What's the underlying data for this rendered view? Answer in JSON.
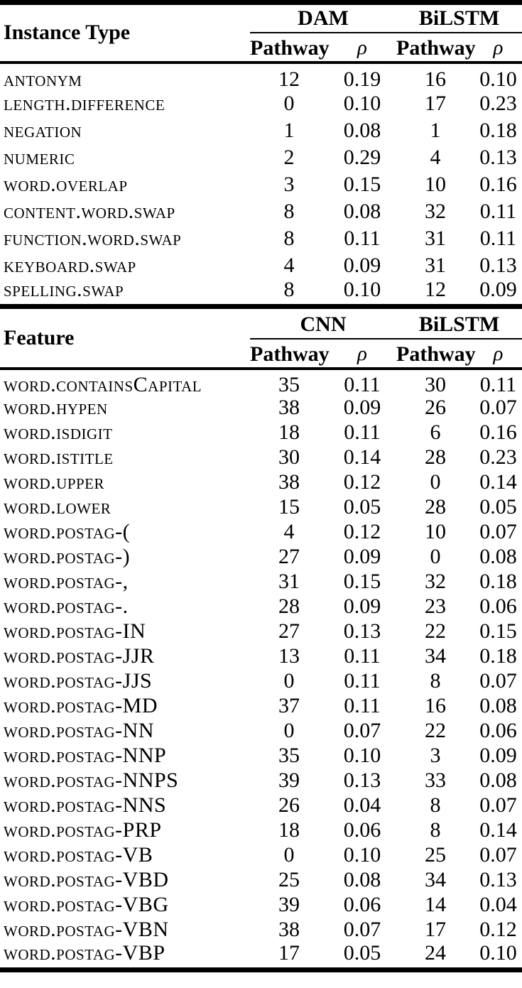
{
  "colors": {
    "background": "#ffffff",
    "text": "#000000",
    "rule": "#000000"
  },
  "tables": [
    {
      "title": "Instance Type",
      "groups": [
        "DAM",
        "BiLSTM"
      ],
      "subheaders": [
        "Pathway",
        "ρ",
        "Pathway",
        "ρ"
      ],
      "rows": [
        {
          "label": "antonym",
          "values": [
            "12",
            "0.19",
            "16",
            "0.10"
          ]
        },
        {
          "label": "length.difference",
          "values": [
            "0",
            "0.10",
            "17",
            "0.23"
          ]
        },
        {
          "label": "negation",
          "values": [
            "1",
            "0.08",
            "1",
            "0.18"
          ]
        },
        {
          "label": "numeric",
          "values": [
            "2",
            "0.29",
            "4",
            "0.13"
          ]
        },
        {
          "label": "word.overlap",
          "values": [
            "3",
            "0.15",
            "10",
            "0.16"
          ]
        },
        {
          "label": "content.word.swap",
          "values": [
            "8",
            "0.08",
            "32",
            "0.11"
          ]
        },
        {
          "label": "function.word.swap",
          "values": [
            "8",
            "0.11",
            "31",
            "0.11"
          ]
        },
        {
          "label": "keyboard.swap",
          "values": [
            "4",
            "0.09",
            "31",
            "0.13"
          ]
        },
        {
          "label": "spelling.swap",
          "values": [
            "8",
            "0.10",
            "12",
            "0.09"
          ]
        }
      ]
    },
    {
      "title": "Feature",
      "groups": [
        "CNN",
        "BiLSTM"
      ],
      "subheaders": [
        "Pathway",
        "ρ",
        "Pathway",
        "ρ"
      ],
      "rows": [
        {
          "label": "word.containsCapital",
          "values": [
            "35",
            "0.11",
            "30",
            "0.11"
          ]
        },
        {
          "label": "word.hypen",
          "values": [
            "38",
            "0.09",
            "26",
            "0.07"
          ]
        },
        {
          "label": "word.isdigit",
          "values": [
            "18",
            "0.11",
            "6",
            "0.16"
          ]
        },
        {
          "label": "word.istitle",
          "values": [
            "30",
            "0.14",
            "28",
            "0.23"
          ]
        },
        {
          "label": "word.upper",
          "values": [
            "38",
            "0.12",
            "0",
            "0.14"
          ]
        },
        {
          "label": "word.lower",
          "values": [
            "15",
            "0.05",
            "28",
            "0.05"
          ]
        },
        {
          "label": "word.postag-(",
          "values": [
            "4",
            "0.12",
            "10",
            "0.07"
          ]
        },
        {
          "label": "word.postag-)",
          "values": [
            "27",
            "0.09",
            "0",
            "0.08"
          ]
        },
        {
          "label": "word.postag-,",
          "values": [
            "31",
            "0.15",
            "32",
            "0.18"
          ]
        },
        {
          "label": "word.postag-.",
          "values": [
            "28",
            "0.09",
            "23",
            "0.06"
          ]
        },
        {
          "label": "word.postag-IN",
          "values": [
            "27",
            "0.13",
            "22",
            "0.15"
          ]
        },
        {
          "label": "word.postag-JJR",
          "values": [
            "13",
            "0.11",
            "34",
            "0.18"
          ]
        },
        {
          "label": "word.postag-JJS",
          "values": [
            "0",
            "0.11",
            "8",
            "0.07"
          ]
        },
        {
          "label": "word.postag-MD",
          "values": [
            "37",
            "0.11",
            "16",
            "0.08"
          ]
        },
        {
          "label": "word.postag-NN",
          "values": [
            "0",
            "0.07",
            "22",
            "0.06"
          ]
        },
        {
          "label": "word.postag-NNP",
          "values": [
            "35",
            "0.10",
            "3",
            "0.09"
          ]
        },
        {
          "label": "word.postag-NNPS",
          "values": [
            "39",
            "0.13",
            "33",
            "0.08"
          ]
        },
        {
          "label": "word.postag-NNS",
          "values": [
            "26",
            "0.04",
            "8",
            "0.07"
          ]
        },
        {
          "label": "word.postag-PRP",
          "values": [
            "18",
            "0.06",
            "8",
            "0.14"
          ]
        },
        {
          "label": "word.postag-VB",
          "values": [
            "0",
            "0.10",
            "25",
            "0.07"
          ]
        },
        {
          "label": "word.postag-VBD",
          "values": [
            "25",
            "0.08",
            "34",
            "0.13"
          ]
        },
        {
          "label": "word.postag-VBG",
          "values": [
            "39",
            "0.06",
            "14",
            "0.04"
          ]
        },
        {
          "label": "word.postag-VBN",
          "values": [
            "38",
            "0.07",
            "17",
            "0.12"
          ]
        },
        {
          "label": "word.postag-VBP",
          "values": [
            "17",
            "0.05",
            "24",
            "0.10"
          ]
        }
      ]
    }
  ]
}
